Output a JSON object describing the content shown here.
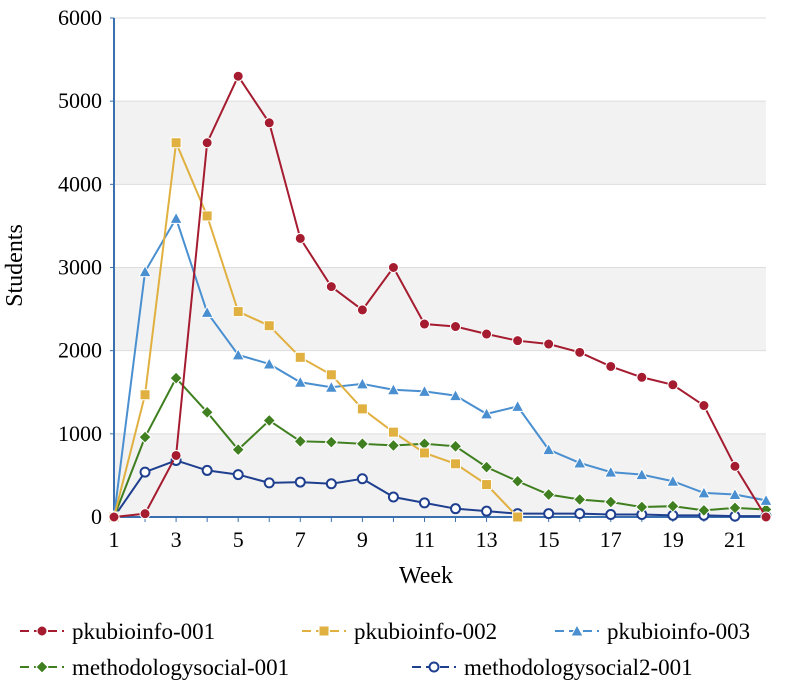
{
  "chart_data": {
    "type": "line",
    "xlabel": "Week",
    "ylabel": "Students",
    "xlim": [
      1,
      22
    ],
    "ylim": [
      0,
      6000
    ],
    "x_ticks": [
      1,
      3,
      5,
      7,
      9,
      11,
      13,
      15,
      17,
      19,
      21
    ],
    "y_ticks": [
      0,
      1000,
      2000,
      3000,
      4000,
      5000,
      6000
    ],
    "grid": "alternating horizontal bands",
    "legend_position": "bottom",
    "series": [
      {
        "name": "pkubioinfo-001",
        "color": "#a51c30",
        "marker": "circle",
        "x": [
          1,
          2,
          3,
          4,
          5,
          6,
          7,
          8,
          9,
          10,
          11,
          12,
          13,
          14,
          15,
          16,
          17,
          18,
          19,
          20,
          21,
          22
        ],
        "values": [
          0,
          40,
          740,
          4500,
          5300,
          4740,
          3350,
          2770,
          2490,
          3000,
          2320,
          2290,
          2200,
          2120,
          2080,
          1980,
          1810,
          1680,
          1590,
          1340,
          610,
          0
        ]
      },
      {
        "name": "pkubioinfo-002",
        "color": "#e0b040",
        "marker": "square",
        "x": [
          1,
          2,
          3,
          4,
          5,
          6,
          7,
          8,
          9,
          10,
          11,
          12,
          13,
          14
        ],
        "values": [
          0,
          1470,
          4500,
          3620,
          2470,
          2300,
          1920,
          1710,
          1300,
          1020,
          770,
          640,
          390,
          0
        ]
      },
      {
        "name": "pkubioinfo-003",
        "color": "#4a8fd0",
        "marker": "triangle",
        "x": [
          1,
          2,
          3,
          4,
          5,
          6,
          7,
          8,
          9,
          10,
          11,
          12,
          13,
          14,
          15,
          16,
          17,
          18,
          19,
          20,
          21,
          22
        ],
        "values": [
          0,
          2950,
          3590,
          2460,
          1950,
          1840,
          1620,
          1560,
          1600,
          1530,
          1510,
          1460,
          1240,
          1330,
          810,
          650,
          540,
          510,
          430,
          290,
          270,
          200
        ]
      },
      {
        "name": "methodologysocial-001",
        "color": "#3f7f1f",
        "marker": "diamond",
        "x": [
          1,
          2,
          3,
          4,
          5,
          6,
          7,
          8,
          9,
          10,
          11,
          12,
          13,
          14,
          15,
          16,
          17,
          18,
          19,
          20,
          21,
          22
        ],
        "values": [
          0,
          960,
          1670,
          1260,
          810,
          1160,
          910,
          900,
          880,
          860,
          880,
          850,
          600,
          430,
          270,
          210,
          180,
          120,
          130,
          80,
          110,
          90
        ]
      },
      {
        "name": "methodologysocial2-001",
        "color": "#1f3f8f",
        "marker": "open-circle",
        "x": [
          1,
          2,
          3,
          4,
          5,
          6,
          7,
          8,
          9,
          10,
          11,
          12,
          13,
          14,
          15,
          16,
          17,
          18,
          19,
          20,
          21,
          22
        ],
        "values": [
          0,
          540,
          680,
          560,
          510,
          410,
          420,
          400,
          460,
          240,
          170,
          100,
          70,
          40,
          40,
          40,
          30,
          30,
          20,
          20,
          10,
          10
        ]
      }
    ]
  }
}
